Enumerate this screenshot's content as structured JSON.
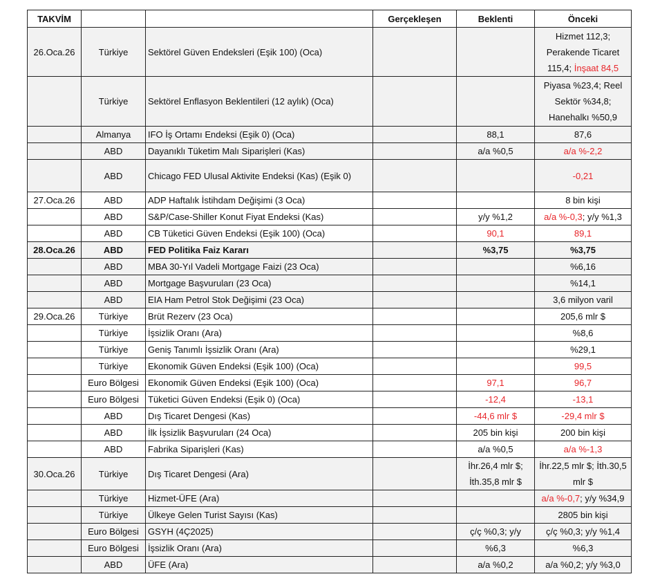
{
  "headers": {
    "date": "TAKVİM",
    "country": "",
    "event": "",
    "actual": "Gerçekleşen",
    "expected": "Beklenti",
    "previous": "Önceki"
  },
  "colors": {
    "negative_text": "#e8252a",
    "alt_row": "#f2f2f2"
  },
  "rows": [
    {
      "date": "26.Oca.26",
      "country": "Türkiye",
      "event": "Sektörel Güven Endeksleri (Eşik 100) (Oca)",
      "actual": "",
      "expected": [],
      "previous": [
        {
          "t": "Hizmet 112,3; Perakende Ticaret 115,4; ",
          "red": false
        },
        {
          "t": "İnşaat 84,5",
          "red": true
        }
      ],
      "gray": true,
      "h": 71
    },
    {
      "date": "",
      "country": "Türkiye",
      "event": "Sektörel Enflasyon Beklentileri (12 aylık) (Oca)",
      "actual": "",
      "expected": [],
      "previous": [
        {
          "t": "Piyasa %23,4;  Reel Sektör %34,8; Hanehalkı %50,9",
          "red": false
        }
      ],
      "gray": true,
      "h": 72
    },
    {
      "date": "",
      "country": "Almanya",
      "event": "IFO İş Ortamı Endeksi (Eşik 0) (Oca)",
      "actual": "",
      "expected": [
        {
          "t": "88,1",
          "red": false
        }
      ],
      "previous": [
        {
          "t": "87,6",
          "red": false
        }
      ],
      "gray": true
    },
    {
      "date": "",
      "country": "ABD",
      "event": "Dayanıklı Tüketim Malı Siparişleri (Kas)",
      "actual": "",
      "expected": [
        {
          "t": "a/a %0,5",
          "red": false
        }
      ],
      "previous": [
        {
          "t": "a/a %-2,2",
          "red": true
        }
      ],
      "gray": true
    },
    {
      "date": "",
      "country": "ABD",
      "event": "Chicago FED Ulusal Aktivite Endeksi (Kas) (Eşik 0)",
      "actual": "",
      "expected": [],
      "previous": [
        {
          "t": "-0,21",
          "red": true
        }
      ],
      "gray": true,
      "h": 47
    },
    {
      "date": "27.Oca.26",
      "country": "ABD",
      "event": "ADP Haftalık İstihdam Değişimi (3 Oca)",
      "actual": "",
      "expected": [],
      "previous": [
        {
          "t": "8 bin kişi",
          "red": false
        }
      ]
    },
    {
      "date": "",
      "country": "ABD",
      "event": "S&P/Case-Shiller Konut Fiyat Endeksi (Kas)",
      "actual": "",
      "expected": [
        {
          "t": "y/y %1,2",
          "red": false
        }
      ],
      "previous": [
        {
          "t": "a/a %-0,3",
          "red": true
        },
        {
          "t": "; y/y %1,3",
          "red": false
        }
      ]
    },
    {
      "date": "",
      "country": "ABD",
      "event": "CB Tüketici Güven Endeksi (Eşik 100) (Oca)",
      "actual": "",
      "expected": [
        {
          "t": "90,1",
          "red": true
        }
      ],
      "previous": [
        {
          "t": "89,1",
          "red": true
        }
      ]
    },
    {
      "date": "28.Oca.26",
      "country": "ABD",
      "event": "FED Politika Faiz Kararı",
      "actual": "",
      "expected": [
        {
          "t": "%3,75",
          "red": false
        }
      ],
      "previous": [
        {
          "t": "%3,75",
          "red": false
        }
      ],
      "gray": true,
      "bold": true
    },
    {
      "date": "",
      "country": "ABD",
      "event": "MBA 30-Yıl Vadeli Mortgage Faizi (23 Oca)",
      "actual": "",
      "expected": [],
      "previous": [
        {
          "t": "%6,16",
          "red": false
        }
      ],
      "gray": true
    },
    {
      "date": "",
      "country": "ABD",
      "event": "Mortgage Başvuruları (23 Oca)",
      "actual": "",
      "expected": [],
      "previous": [
        {
          "t": "%14,1",
          "red": false
        }
      ],
      "gray": true
    },
    {
      "date": "",
      "country": "ABD",
      "event": "EIA Ham Petrol Stok Değişimi (23 Oca)",
      "actual": "",
      "expected": [],
      "previous": [
        {
          "t": "3,6 milyon varil",
          "red": false
        }
      ],
      "gray": true
    },
    {
      "date": "29.Oca.26",
      "country": "Türkiye",
      "event": "Brüt Rezerv (23 Oca)",
      "actual": "",
      "expected": [],
      "previous": [
        {
          "t": "205,6 mlr $",
          "red": false
        }
      ]
    },
    {
      "date": "",
      "country": "Türkiye",
      "event": "İşsizlik Oranı (Ara)",
      "actual": "",
      "expected": [],
      "previous": [
        {
          "t": "%8,6",
          "red": false
        }
      ]
    },
    {
      "date": "",
      "country": "Türkiye",
      "event": "Geniş Tanımlı İşsizlik Oranı (Ara)",
      "actual": "",
      "expected": [],
      "previous": [
        {
          "t": "%29,1",
          "red": false
        }
      ]
    },
    {
      "date": "",
      "country": "Türkiye",
      "event": "Ekonomik Güven Endeksi (Eşik 100) (Oca)",
      "actual": "",
      "expected": [],
      "previous": [
        {
          "t": "99,5",
          "red": true
        }
      ]
    },
    {
      "date": "",
      "country": "Euro Bölgesi",
      "event": "Ekonomik Güven Endeksi (Eşik 100) (Oca)",
      "actual": "",
      "expected": [
        {
          "t": "97,1",
          "red": true
        }
      ],
      "previous": [
        {
          "t": "96,7",
          "red": true
        }
      ]
    },
    {
      "date": "",
      "country": "Euro Bölgesi",
      "event": "Tüketici Güven Endeksi (Eşik 0) (Oca)",
      "actual": "",
      "expected": [
        {
          "t": "-12,4",
          "red": true
        }
      ],
      "previous": [
        {
          "t": "-13,1",
          "red": true
        }
      ]
    },
    {
      "date": "",
      "country": "ABD",
      "event": "Dış Ticaret Dengesi (Kas)",
      "actual": "",
      "expected": [
        {
          "t": "-44,6 mlr $",
          "red": true
        }
      ],
      "previous": [
        {
          "t": "-29,4 mlr $",
          "red": true
        }
      ]
    },
    {
      "date": "",
      "country": "ABD",
      "event": "İlk İşsizlik Başvuruları (24 Oca)",
      "actual": "",
      "expected": [
        {
          "t": "205 bin kişi",
          "red": false
        }
      ],
      "previous": [
        {
          "t": "200 bin kişi",
          "red": false
        }
      ]
    },
    {
      "date": "",
      "country": "ABD",
      "event": "Fabrika Siparişleri (Kas)",
      "actual": "",
      "expected": [
        {
          "t": "a/a %0,5",
          "red": false
        }
      ],
      "previous": [
        {
          "t": "a/a %-1,3",
          "red": true
        }
      ]
    },
    {
      "date": "30.Oca.26",
      "country": "Türkiye",
      "event": "Dış Ticaret Dengesi (Ara)",
      "actual": "",
      "expected": [
        {
          "t": "İhr.26,4 mlr $; İth.35,8 mlr $",
          "red": false
        }
      ],
      "previous": [
        {
          "t": "İhr.22,5 mlr $; İth.30,5 mlr $",
          "red": false
        }
      ],
      "gray": true,
      "h": 47
    },
    {
      "date": "",
      "country": "Türkiye",
      "event": "Hizmet-ÜFE (Ara)",
      "actual": "",
      "expected": [],
      "previous": [
        {
          "t": "a/a %-0,7",
          "red": true
        },
        {
          "t": "; y/y %34,9",
          "red": false
        }
      ],
      "gray": true
    },
    {
      "date": "",
      "country": "Türkiye",
      "event": "Ülkeye Gelen Turist Sayısı (Kas)",
      "actual": "",
      "expected": [],
      "previous": [
        {
          "t": "2805 bin kişi",
          "red": false
        }
      ],
      "gray": true
    },
    {
      "date": "",
      "country": "Euro Bölgesi",
      "event": "GSYH (4Ç2025)",
      "actual": "",
      "expected": [
        {
          "t": "ç/ç %0,3; y/y",
          "red": false
        }
      ],
      "previous": [
        {
          "t": "ç/ç %0,3; y/y %1,4",
          "red": false
        }
      ],
      "gray": true
    },
    {
      "date": "",
      "country": "Euro Bölgesi",
      "event": "İşsizlik Oranı (Ara)",
      "actual": "",
      "expected": [
        {
          "t": "%6,3",
          "red": false
        }
      ],
      "previous": [
        {
          "t": "%6,3",
          "red": false
        }
      ],
      "gray": true
    },
    {
      "date": "",
      "country": "ABD",
      "event": "ÜFE (Ara)",
      "actual": "",
      "expected": [
        {
          "t": "a/a %0,2",
          "red": false
        }
      ],
      "previous": [
        {
          "t": "a/a %0,2; y/y %3,0",
          "red": false
        }
      ],
      "gray": true
    }
  ]
}
